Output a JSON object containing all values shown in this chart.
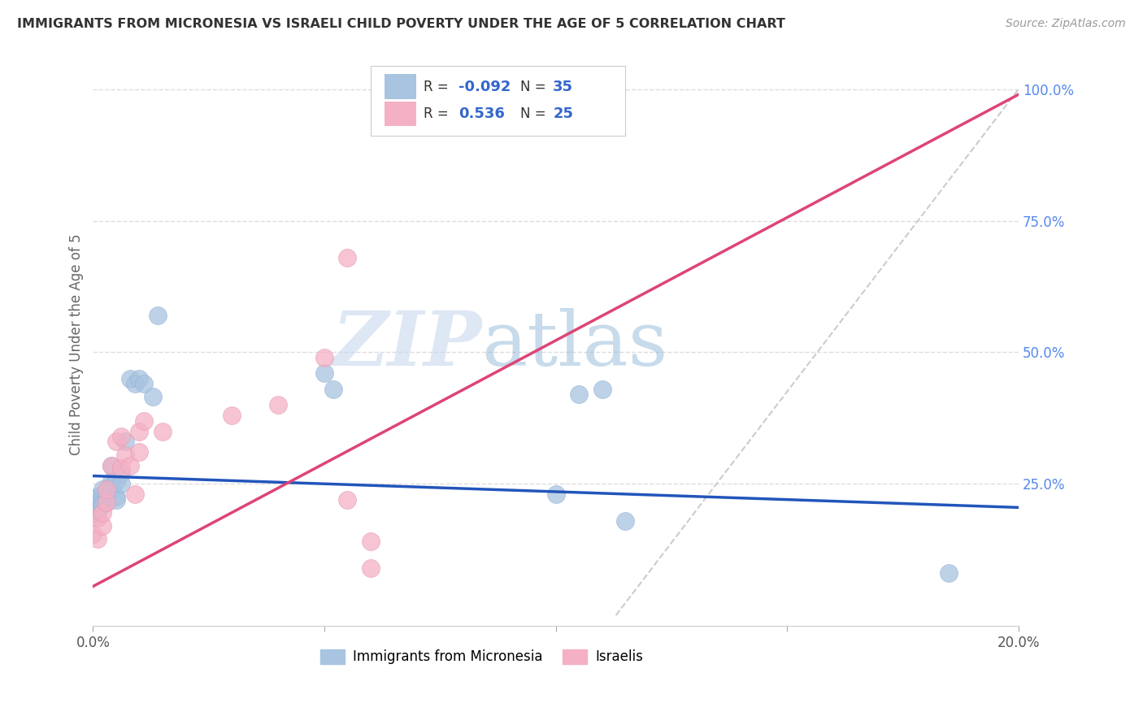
{
  "title": "IMMIGRANTS FROM MICRONESIA VS ISRAELI CHILD POVERTY UNDER THE AGE OF 5 CORRELATION CHART",
  "source": "Source: ZipAtlas.com",
  "ylabel": "Child Poverty Under the Age of 5",
  "xlim": [
    0.0,
    0.2
  ],
  "ylim": [
    -0.02,
    1.05
  ],
  "xticks": [
    0.0,
    0.05,
    0.1,
    0.15,
    0.2
  ],
  "xtick_labels": [
    "0.0%",
    "",
    "",
    "",
    "20.0%"
  ],
  "ytick_labels_right": [
    "100.0%",
    "75.0%",
    "50.0%",
    "25.0%"
  ],
  "ytick_vals_right": [
    1.0,
    0.75,
    0.5,
    0.25
  ],
  "blue_R": "-0.092",
  "blue_N": "35",
  "pink_R": "0.536",
  "pink_N": "25",
  "blue_scatter_x": [
    0.0,
    0.0,
    0.001,
    0.001,
    0.001,
    0.002,
    0.002,
    0.002,
    0.002,
    0.003,
    0.003,
    0.003,
    0.004,
    0.004,
    0.004,
    0.004,
    0.005,
    0.005,
    0.005,
    0.006,
    0.006,
    0.007,
    0.008,
    0.009,
    0.01,
    0.011,
    0.013,
    0.014,
    0.05,
    0.052,
    0.1,
    0.105,
    0.11,
    0.115,
    0.185
  ],
  "blue_scatter_y": [
    0.205,
    0.195,
    0.215,
    0.225,
    0.2,
    0.22,
    0.23,
    0.21,
    0.24,
    0.235,
    0.225,
    0.215,
    0.285,
    0.255,
    0.245,
    0.24,
    0.255,
    0.225,
    0.22,
    0.27,
    0.25,
    0.33,
    0.45,
    0.44,
    0.45,
    0.44,
    0.415,
    0.57,
    0.46,
    0.43,
    0.23,
    0.42,
    0.43,
    0.18,
    0.08
  ],
  "pink_scatter_x": [
    0.0,
    0.001,
    0.001,
    0.002,
    0.002,
    0.003,
    0.003,
    0.004,
    0.005,
    0.006,
    0.006,
    0.007,
    0.008,
    0.009,
    0.01,
    0.01,
    0.011,
    0.015,
    0.03,
    0.04,
    0.05,
    0.055,
    0.06,
    0.06,
    0.055
  ],
  "pink_scatter_y": [
    0.155,
    0.145,
    0.185,
    0.17,
    0.195,
    0.215,
    0.24,
    0.285,
    0.33,
    0.34,
    0.28,
    0.305,
    0.285,
    0.23,
    0.35,
    0.31,
    0.37,
    0.35,
    0.38,
    0.4,
    0.49,
    0.22,
    0.14,
    0.09,
    0.68
  ],
  "blue_line_x": [
    0.0,
    0.2
  ],
  "blue_line_y": [
    0.265,
    0.205
  ],
  "pink_line_x": [
    0.0,
    0.2
  ],
  "pink_line_y": [
    0.055,
    0.99
  ],
  "dash_line_x": [
    0.113,
    0.2
  ],
  "dash_line_y": [
    0.0,
    1.0
  ],
  "blue_color": "#a8c4e0",
  "blue_edge_color": "#90b0d8",
  "pink_color": "#f4b0c4",
  "pink_edge_color": "#e898b0",
  "blue_line_color": "#2255bb",
  "pink_line_color": "#dd4477",
  "dash_line_color": "#cccccc",
  "watermark_zip": "ZIP",
  "watermark_atlas": "atlas",
  "background_color": "#ffffff",
  "grid_color": "#dddddd",
  "grid_style": "--"
}
